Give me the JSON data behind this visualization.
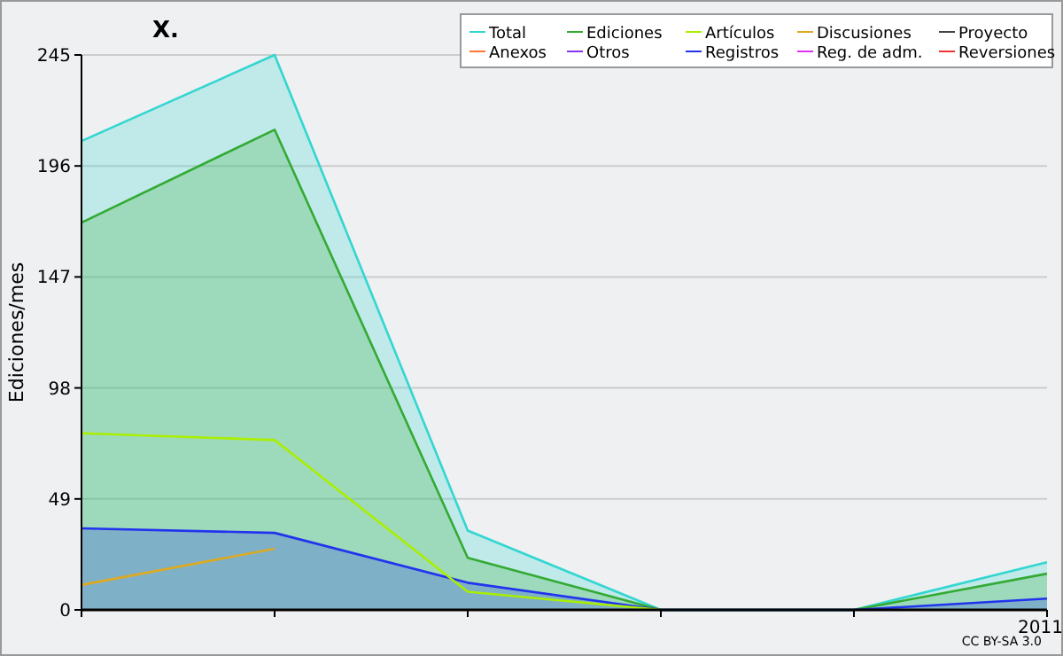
{
  "chart_data": {
    "type": "line",
    "title": "X.",
    "ylabel": "Ediciones/mes",
    "categories": [
      null,
      null,
      null,
      null,
      null,
      "2011"
    ],
    "ylim": [
      0,
      245
    ],
    "yticks": [
      0,
      49,
      98,
      147,
      196,
      245
    ],
    "grid": "y",
    "legend": "top right",
    "annotations": [
      "CC BY-SA 3.0"
    ],
    "series": [
      {
        "name": "Total",
        "type": "area",
        "color": "#33d6d0",
        "values": [
          207,
          245,
          35,
          0,
          0,
          21
        ]
      },
      {
        "name": "Ediciones",
        "type": "area",
        "color": "#33aa33",
        "values": [
          171,
          212,
          23,
          0,
          0,
          16
        ]
      },
      {
        "name": "Artículos",
        "color": "#aaee00",
        "values": [
          78,
          75,
          8,
          0,
          null,
          null
        ]
      },
      {
        "name": "Discusiones",
        "color": "#ddaa22",
        "values": [
          11,
          27,
          null,
          null,
          null,
          null
        ]
      },
      {
        "name": "Proyecto",
        "color": "#444444",
        "values": [
          null,
          null,
          null,
          null,
          null,
          null
        ]
      },
      {
        "name": "Anexos",
        "color": "#ff7733",
        "values": [
          null,
          null,
          null,
          null,
          null,
          null
        ]
      },
      {
        "name": "Otros",
        "color": "#8833ee",
        "values": [
          null,
          null,
          null,
          null,
          null,
          null
        ]
      },
      {
        "name": "Registros",
        "type": "area",
        "color": "#2233ee",
        "values": [
          36,
          34,
          12,
          0,
          0,
          5
        ]
      },
      {
        "name": "Reg. de adm.",
        "color": "#dd33ee",
        "values": [
          null,
          null,
          null,
          null,
          null,
          null
        ]
      },
      {
        "name": "Reversiones",
        "color": "#ee3333",
        "values": [
          null,
          null,
          null,
          null,
          null,
          null
        ]
      }
    ]
  }
}
